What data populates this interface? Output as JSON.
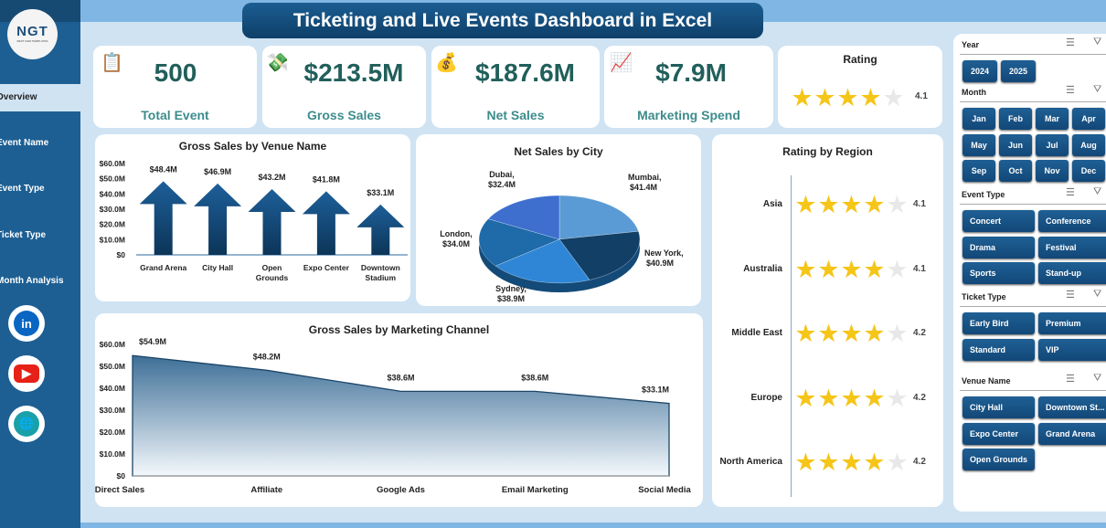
{
  "title": "Ticketing and Live Events Dashboard in Excel",
  "logo": {
    "text": "NGT",
    "sub": "NEXT GEN TEMPLATES"
  },
  "nav": [
    {
      "label": "Overview",
      "active": true
    },
    {
      "label": "Event Name"
    },
    {
      "label": "Event Type"
    },
    {
      "label": "Ticket Type"
    },
    {
      "label": "Month Analysis"
    }
  ],
  "social": [
    {
      "icon": "linkedin-icon",
      "text": "in",
      "color": "#0a66c2"
    },
    {
      "icon": "youtube-icon",
      "text": "▶",
      "color": "#e62117"
    },
    {
      "icon": "globe-icon",
      "text": "🌐",
      "color": "#1aa0a8"
    }
  ],
  "kpis": [
    {
      "value": "500",
      "label": "Total Event",
      "icon": "clipboard-icon"
    },
    {
      "value": "$213.5M",
      "label": "Gross Sales",
      "icon": "money-icon"
    },
    {
      "value": "$187.6M",
      "label": "Net Sales",
      "icon": "moneybag-icon"
    },
    {
      "value": "$7.9M",
      "label": "Marketing Spend",
      "icon": "growth-icon"
    }
  ],
  "rating": {
    "title": "Rating",
    "value": "4.1",
    "score": 4.1
  },
  "colors": {
    "accent": "#1d5f93",
    "star": "#f5c518",
    "kpi": "#215f5b"
  },
  "chart_data": [
    {
      "type": "bar",
      "title": "Gross Sales by Venue Name",
      "categories": [
        "Grand Arena",
        "City Hall",
        "Open Grounds",
        "Expo Center",
        "Downtown Stadium"
      ],
      "values": [
        48.4,
        46.9,
        43.2,
        41.8,
        33.1
      ],
      "labels": [
        "$48.4M",
        "$46.9M",
        "$43.2M",
        "$41.8M",
        "$33.1M"
      ],
      "yticks": [
        "$0",
        "$10.0M",
        "$20.0M",
        "$30.0M",
        "$40.0M",
        "$50.0M",
        "$60.0M"
      ],
      "ylim": [
        0,
        60
      ]
    },
    {
      "type": "pie",
      "title": "Net Sales by City",
      "categories": [
        "Mumbai",
        "New York",
        "Sydney",
        "London",
        "Dubai"
      ],
      "values": [
        41.4,
        40.9,
        38.9,
        34.0,
        32.4
      ],
      "labels": [
        "$41.4M",
        "$40.9M",
        "$38.9M",
        "$34.0M",
        "$32.4M"
      ]
    },
    {
      "type": "area",
      "title": "Gross Sales by Marketing Channel",
      "categories": [
        "Direct Sales",
        "Affiliate",
        "Google Ads",
        "Email Marketing",
        "Social Media"
      ],
      "values": [
        54.9,
        48.2,
        38.6,
        38.6,
        33.1
      ],
      "labels": [
        "$54.9M",
        "$48.2M",
        "$38.6M",
        "$38.6M",
        "$33.1M"
      ],
      "yticks": [
        "$0",
        "$10.0M",
        "$20.0M",
        "$30.0M",
        "$40.0M",
        "$50.0M",
        "$60.0M"
      ],
      "ylim": [
        0,
        60
      ]
    },
    {
      "type": "bar",
      "title": "Rating by Region",
      "categories": [
        "Asia",
        "Australia",
        "Middle East",
        "Europe",
        "North America"
      ],
      "values": [
        4.1,
        4.1,
        4.2,
        4.2,
        4.2
      ],
      "labels": [
        "4.1",
        "4.1",
        "4.2",
        "4.2",
        "4.2"
      ],
      "ylim": [
        0,
        5
      ]
    }
  ],
  "slicers": [
    {
      "title": "Year",
      "items": [
        "2024",
        "2025"
      ]
    },
    {
      "title": "Month",
      "items": [
        "Jan",
        "Feb",
        "Mar",
        "Apr",
        "May",
        "Jun",
        "Jul",
        "Aug",
        "Sep",
        "Oct",
        "Nov",
        "Dec"
      ]
    },
    {
      "title": "Event Type",
      "items": [
        "Concert",
        "Conference",
        "Drama",
        "Festival",
        "Sports",
        "Stand-up"
      ]
    },
    {
      "title": "Ticket Type",
      "items": [
        "Early Bird",
        "Premium",
        "Standard",
        "VIP"
      ]
    },
    {
      "title": "Venue Name",
      "items": [
        "City Hall",
        "Downtown St...",
        "Expo Center",
        "Grand Arena",
        "Open Grounds"
      ]
    }
  ]
}
